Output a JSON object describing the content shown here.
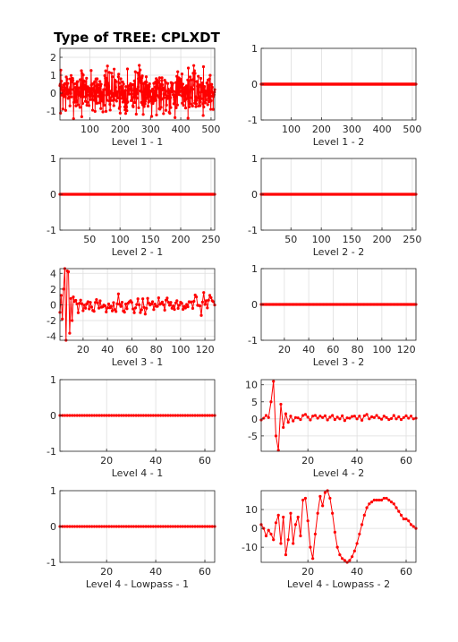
{
  "title": "Type of TREE: CPLXDT",
  "colors": {
    "series": "#ff0000",
    "axis": "#262626",
    "grid": "#dedede"
  },
  "chart_data": [
    {
      "type": "line",
      "xlabel": "Level 1 - 1",
      "xlim": [
        1,
        512
      ],
      "ylim": [
        -1.5,
        2.5
      ],
      "xticks": [
        100,
        200,
        300,
        400,
        500
      ],
      "yticks": [
        -1,
        0,
        1,
        2
      ],
      "grid": true,
      "marker": "filled-circle",
      "signal": "noise",
      "n": 512,
      "mean": 0.1,
      "spread": 0.6,
      "seed": 7
    },
    {
      "type": "line",
      "xlabel": "Level 1 - 2",
      "xlim": [
        1,
        512
      ],
      "ylim": [
        -1,
        1
      ],
      "xticks": [
        100,
        200,
        300,
        400,
        500
      ],
      "yticks": [
        -1,
        0,
        1
      ],
      "grid": true,
      "marker": "filled-circle",
      "signal": "zeros",
      "n": 512
    },
    {
      "type": "line",
      "xlabel": "Level 2 - 1",
      "xlim": [
        1,
        256
      ],
      "ylim": [
        -1,
        1
      ],
      "xticks": [
        50,
        100,
        150,
        200,
        250
      ],
      "yticks": [
        -1,
        0,
        1
      ],
      "grid": true,
      "marker": "filled-circle",
      "signal": "zeros",
      "n": 256
    },
    {
      "type": "line",
      "xlabel": "Level 2 - 2",
      "xlim": [
        1,
        256
      ],
      "ylim": [
        -1,
        1
      ],
      "xticks": [
        50,
        100,
        150,
        200,
        250
      ],
      "yticks": [
        -1,
        0,
        1
      ],
      "grid": true,
      "marker": "filled-circle",
      "signal": "zeros",
      "n": 256
    },
    {
      "type": "line",
      "xlabel": "Level 3 - 1",
      "xlim": [
        1,
        128
      ],
      "ylim": [
        -4.5,
        4.6
      ],
      "xticks": [
        20,
        40,
        60,
        80,
        100,
        120
      ],
      "yticks": [
        -4,
        -2,
        0,
        2,
        4
      ],
      "grid": true,
      "marker": "filled-circle",
      "signal": "noise",
      "n": 128,
      "mean": 0,
      "spread": 0.55,
      "seed": 21,
      "peaks": [
        [
          2,
          1.2
        ],
        [
          3,
          -1.8
        ],
        [
          4,
          2.0
        ],
        [
          5,
          4.6
        ],
        [
          6,
          -4.5
        ],
        [
          7,
          4.3
        ],
        [
          8,
          4.2
        ],
        [
          9,
          -3.6
        ],
        [
          10,
          0.8
        ],
        [
          11,
          -2.0
        ],
        [
          12,
          1.0
        ],
        [
          124,
          1.2
        ],
        [
          125,
          0.9
        ]
      ]
    },
    {
      "type": "line",
      "xlabel": "Level 3 - 2",
      "xlim": [
        1,
        128
      ],
      "ylim": [
        -1,
        1
      ],
      "xticks": [
        20,
        40,
        60,
        80,
        100,
        120
      ],
      "yticks": [
        -1,
        0,
        1
      ],
      "grid": true,
      "marker": "filled-circle",
      "signal": "zeros",
      "n": 128
    },
    {
      "type": "line",
      "xlabel": "Level 4 - 1",
      "xlim": [
        1,
        64
      ],
      "ylim": [
        -1,
        1
      ],
      "xticks": [
        20,
        40,
        60
      ],
      "yticks": [
        -1,
        0,
        1
      ],
      "grid": true,
      "marker": "filled-circle",
      "signal": "zeros",
      "n": 64
    },
    {
      "type": "line",
      "xlabel": "Level 4 - 2",
      "xlim": [
        1,
        64
      ],
      "ylim": [
        -9.5,
        11.5
      ],
      "xticks": [
        20,
        40,
        60
      ],
      "yticks": [
        -5,
        0,
        5,
        10
      ],
      "grid": true,
      "marker": "filled-circle",
      "y": [
        -0.3,
        0.2,
        1.0,
        0.4,
        5.0,
        11.0,
        -5.0,
        -9.2,
        4.3,
        -2.5,
        1.5,
        -1.0,
        0.8,
        -0.6,
        0.4,
        0.3,
        -0.2,
        1.0,
        1.3,
        0.5,
        -0.3,
        0.8,
        1.0,
        0.2,
        0.8,
        0.4,
        0.9,
        -0.3,
        0.5,
        1.0,
        -0.2,
        0.5,
        0.0,
        0.9,
        -0.5,
        0.3,
        0.2,
        0.7,
        0.8,
        0.0,
        0.8,
        -0.4,
        0.9,
        1.3,
        0.0,
        0.6,
        0.4,
        1.0,
        0.3,
        -0.1,
        0.8,
        0.4,
        -0.2,
        0.1,
        1.0,
        0.0,
        0.6,
        -0.2,
        0.4,
        0.9,
        0.2,
        0.8,
        0.0,
        0.2
      ]
    },
    {
      "type": "line",
      "xlabel": "Level 4 - Lowpass - 1",
      "xlim": [
        1,
        64
      ],
      "ylim": [
        -1,
        1
      ],
      "xticks": [
        20,
        40,
        60
      ],
      "yticks": [
        -1,
        0,
        1
      ],
      "grid": true,
      "marker": "filled-circle",
      "signal": "zeros",
      "n": 64
    },
    {
      "type": "line",
      "xlabel": "Level 4 - Lowpass - 2",
      "xlim": [
        1,
        64
      ],
      "ylim": [
        -18,
        20
      ],
      "xticks": [
        20,
        40,
        60
      ],
      "yticks": [
        -10,
        0,
        10
      ],
      "grid": true,
      "marker": "filled-circle",
      "y": [
        2,
        0,
        -4,
        -1,
        -3,
        -6,
        3,
        7,
        -8,
        6,
        -14,
        -6,
        8,
        -8,
        2,
        6,
        -4,
        15,
        16,
        4,
        -10,
        -16,
        -3,
        8,
        17,
        12,
        19,
        20,
        16,
        8,
        -2,
        -10,
        -14,
        -16,
        -17,
        -18,
        -17,
        -15,
        -12,
        -8,
        -3,
        2,
        7,
        11,
        13,
        14,
        15,
        15,
        15,
        15,
        16,
        16,
        15,
        14,
        13,
        11,
        9,
        7,
        5,
        5,
        4,
        2,
        1,
        0
      ]
    }
  ]
}
